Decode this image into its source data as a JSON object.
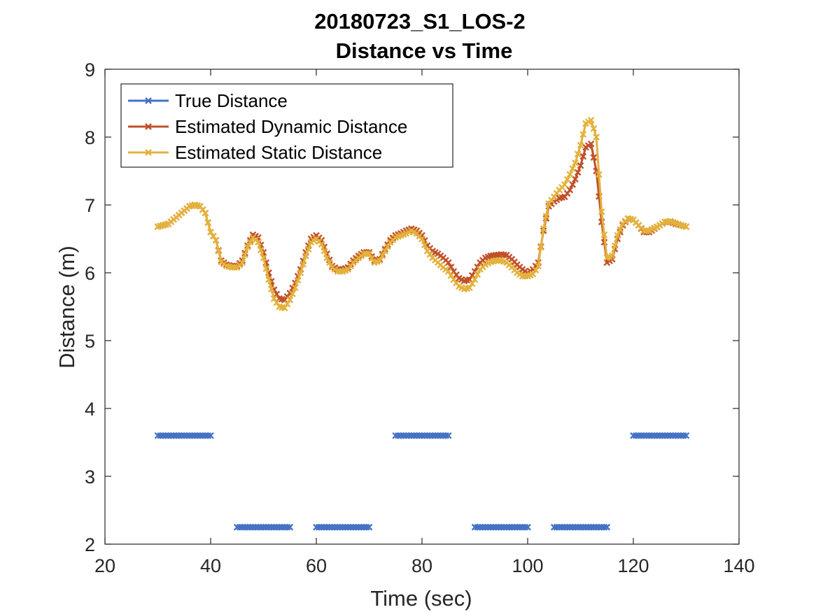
{
  "chart_data": {
    "type": "line",
    "title": "20180723_S1_LOS-2",
    "subtitle": "Distance vs Time",
    "xlabel": "Time (sec)",
    "ylabel": "Distance (m)",
    "xlim": [
      20,
      140
    ],
    "ylim": [
      2,
      9
    ],
    "xticks": [
      20,
      40,
      60,
      80,
      100,
      120,
      140
    ],
    "yticks": [
      2,
      3,
      4,
      5,
      6,
      7,
      8,
      9
    ],
    "grid": false,
    "legend_position": "top-left",
    "series": [
      {
        "name": "True Distance",
        "color": "#4472C4",
        "marker": "x",
        "segments": [
          {
            "x": [
              30,
              40
            ],
            "y": 3.6
          },
          {
            "x": [
              45,
              55
            ],
            "y": 2.25
          },
          {
            "x": [
              60,
              70
            ],
            "y": 2.25
          },
          {
            "x": [
              75,
              85
            ],
            "y": 3.6
          },
          {
            "x": [
              90,
              100
            ],
            "y": 2.25
          },
          {
            "x": [
              105,
              115
            ],
            "y": 2.25
          },
          {
            "x": [
              120,
              130
            ],
            "y": 3.6
          }
        ]
      },
      {
        "name": "Estimated Dynamic Distance",
        "color": "#C0502A",
        "marker": "x",
        "points": [
          [
            30,
            6.68
          ],
          [
            32,
            6.72
          ],
          [
            34,
            6.85
          ],
          [
            36,
            6.98
          ],
          [
            37,
            7.0
          ],
          [
            38,
            6.98
          ],
          [
            39,
            6.88
          ],
          [
            40,
            6.6
          ],
          [
            41,
            6.48
          ],
          [
            42,
            6.18
          ],
          [
            43,
            6.12
          ],
          [
            44,
            6.1
          ],
          [
            45,
            6.1
          ],
          [
            46,
            6.18
          ],
          [
            47,
            6.4
          ],
          [
            48,
            6.56
          ],
          [
            49,
            6.52
          ],
          [
            50,
            6.3
          ],
          [
            51,
            6.0
          ],
          [
            52,
            5.75
          ],
          [
            53,
            5.62
          ],
          [
            54,
            5.6
          ],
          [
            55,
            5.7
          ],
          [
            56,
            5.85
          ],
          [
            57,
            6.05
          ],
          [
            58,
            6.3
          ],
          [
            59,
            6.5
          ],
          [
            60,
            6.55
          ],
          [
            61,
            6.48
          ],
          [
            62,
            6.28
          ],
          [
            63,
            6.1
          ],
          [
            64,
            6.05
          ],
          [
            65,
            6.05
          ],
          [
            66,
            6.08
          ],
          [
            67,
            6.18
          ],
          [
            68,
            6.25
          ],
          [
            69,
            6.3
          ],
          [
            70,
            6.3
          ],
          [
            71,
            6.18
          ],
          [
            72,
            6.2
          ],
          [
            73,
            6.35
          ],
          [
            74,
            6.48
          ],
          [
            75,
            6.55
          ],
          [
            76,
            6.58
          ],
          [
            77,
            6.62
          ],
          [
            78,
            6.65
          ],
          [
            79,
            6.62
          ],
          [
            80,
            6.55
          ],
          [
            81,
            6.4
          ],
          [
            82,
            6.32
          ],
          [
            83,
            6.28
          ],
          [
            84,
            6.22
          ],
          [
            85,
            6.15
          ],
          [
            86,
            6.02
          ],
          [
            87,
            5.92
          ],
          [
            88,
            5.88
          ],
          [
            89,
            5.9
          ],
          [
            90,
            6.02
          ],
          [
            91,
            6.15
          ],
          [
            92,
            6.22
          ],
          [
            93,
            6.25
          ],
          [
            94,
            6.26
          ],
          [
            95,
            6.27
          ],
          [
            96,
            6.26
          ],
          [
            97,
            6.2
          ],
          [
            98,
            6.12
          ],
          [
            99,
            6.05
          ],
          [
            100,
            6.0
          ],
          [
            101,
            6.05
          ],
          [
            102,
            6.15
          ],
          [
            103,
            6.62
          ],
          [
            104,
            6.98
          ],
          [
            105,
            7.05
          ],
          [
            106,
            7.1
          ],
          [
            107,
            7.12
          ],
          [
            108,
            7.22
          ],
          [
            109,
            7.38
          ],
          [
            110,
            7.58
          ],
          [
            111,
            7.85
          ],
          [
            112,
            7.9
          ],
          [
            113,
            7.5
          ],
          [
            114,
            6.75
          ],
          [
            115,
            6.15
          ],
          [
            116,
            6.2
          ],
          [
            117,
            6.5
          ],
          [
            118,
            6.7
          ],
          [
            119,
            6.8
          ],
          [
            120,
            6.78
          ],
          [
            121,
            6.7
          ],
          [
            122,
            6.6
          ],
          [
            123,
            6.6
          ],
          [
            124,
            6.65
          ],
          [
            125,
            6.7
          ],
          [
            126,
            6.75
          ],
          [
            127,
            6.75
          ],
          [
            128,
            6.72
          ],
          [
            129,
            6.7
          ],
          [
            130,
            6.68
          ]
        ]
      },
      {
        "name": "Estimated Static Distance",
        "color": "#E3B23C",
        "marker": "x",
        "points": [
          [
            30,
            6.68
          ],
          [
            32,
            6.72
          ],
          [
            34,
            6.85
          ],
          [
            36,
            6.98
          ],
          [
            37,
            7.0
          ],
          [
            38,
            6.98
          ],
          [
            39,
            6.88
          ],
          [
            40,
            6.6
          ],
          [
            41,
            6.48
          ],
          [
            42,
            6.16
          ],
          [
            43,
            6.1
          ],
          [
            44,
            6.08
          ],
          [
            45,
            6.08
          ],
          [
            46,
            6.15
          ],
          [
            47,
            6.38
          ],
          [
            48,
            6.52
          ],
          [
            49,
            6.45
          ],
          [
            50,
            6.22
          ],
          [
            51,
            5.9
          ],
          [
            52,
            5.62
          ],
          [
            53,
            5.5
          ],
          [
            54,
            5.48
          ],
          [
            55,
            5.6
          ],
          [
            56,
            5.78
          ],
          [
            57,
            6.0
          ],
          [
            58,
            6.25
          ],
          [
            59,
            6.45
          ],
          [
            60,
            6.5
          ],
          [
            61,
            6.42
          ],
          [
            62,
            6.22
          ],
          [
            63,
            6.08
          ],
          [
            64,
            6.02
          ],
          [
            65,
            6.02
          ],
          [
            66,
            6.05
          ],
          [
            67,
            6.15
          ],
          [
            68,
            6.22
          ],
          [
            69,
            6.28
          ],
          [
            70,
            6.28
          ],
          [
            71,
            6.15
          ],
          [
            72,
            6.18
          ],
          [
            73,
            6.32
          ],
          [
            74,
            6.45
          ],
          [
            75,
            6.52
          ],
          [
            76,
            6.55
          ],
          [
            77,
            6.58
          ],
          [
            78,
            6.62
          ],
          [
            79,
            6.58
          ],
          [
            80,
            6.5
          ],
          [
            81,
            6.32
          ],
          [
            82,
            6.22
          ],
          [
            83,
            6.15
          ],
          [
            84,
            6.08
          ],
          [
            85,
            6.02
          ],
          [
            86,
            5.9
          ],
          [
            87,
            5.8
          ],
          [
            88,
            5.76
          ],
          [
            89,
            5.78
          ],
          [
            90,
            5.9
          ],
          [
            91,
            6.05
          ],
          [
            92,
            6.12
          ],
          [
            93,
            6.16
          ],
          [
            94,
            6.18
          ],
          [
            95,
            6.18
          ],
          [
            96,
            6.15
          ],
          [
            97,
            6.08
          ],
          [
            98,
            6.0
          ],
          [
            99,
            5.95
          ],
          [
            100,
            5.95
          ],
          [
            101,
            5.98
          ],
          [
            102,
            6.1
          ],
          [
            103,
            6.65
          ],
          [
            104,
            7.02
          ],
          [
            105,
            7.12
          ],
          [
            106,
            7.22
          ],
          [
            107,
            7.3
          ],
          [
            108,
            7.45
          ],
          [
            109,
            7.62
          ],
          [
            110,
            7.88
          ],
          [
            111,
            8.2
          ],
          [
            112,
            8.25
          ],
          [
            113,
            8.0
          ],
          [
            114,
            6.9
          ],
          [
            115,
            6.22
          ],
          [
            116,
            6.25
          ],
          [
            117,
            6.55
          ],
          [
            118,
            6.72
          ],
          [
            119,
            6.8
          ],
          [
            120,
            6.78
          ],
          [
            121,
            6.7
          ],
          [
            122,
            6.62
          ],
          [
            123,
            6.62
          ],
          [
            124,
            6.66
          ],
          [
            125,
            6.7
          ],
          [
            126,
            6.75
          ],
          [
            127,
            6.76
          ],
          [
            128,
            6.73
          ],
          [
            129,
            6.7
          ],
          [
            130,
            6.68
          ]
        ]
      }
    ]
  }
}
